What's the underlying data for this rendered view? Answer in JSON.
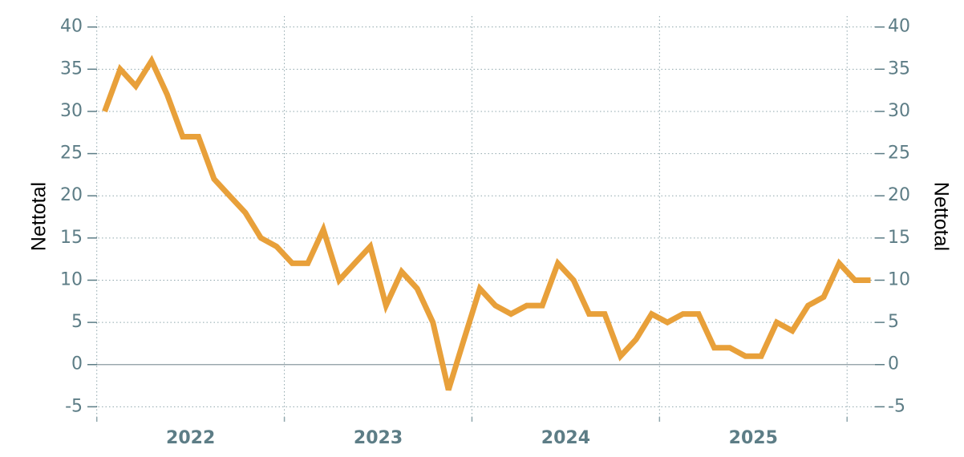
{
  "chart_data": {
    "type": "line",
    "y_label": "Nettotal",
    "y2_label": "Nettotal",
    "x": [
      2022.042,
      2022.125,
      2022.208,
      2022.292,
      2022.375,
      2022.458,
      2022.542,
      2022.625,
      2022.708,
      2022.792,
      2022.875,
      2022.958,
      2023.042,
      2023.125,
      2023.208,
      2023.292,
      2023.375,
      2023.458,
      2023.542,
      2023.625,
      2023.708,
      2023.792,
      2023.875,
      2023.958,
      2024.042,
      2024.125,
      2024.208,
      2024.292,
      2024.375,
      2024.458,
      2024.542,
      2024.625,
      2024.708,
      2024.792,
      2024.875,
      2024.958,
      2025.042,
      2025.125,
      2025.208,
      2025.292,
      2025.375,
      2025.458,
      2025.542,
      2025.625,
      2025.708,
      2025.792,
      2025.875,
      2025.958,
      2026.042,
      2026.125
    ],
    "series": [
      {
        "color": "#e8a03a",
        "values": [
          30,
          35,
          33,
          36,
          32,
          27,
          27,
          22,
          20,
          18,
          15,
          14,
          12,
          12,
          16,
          10,
          12,
          14,
          7,
          11,
          9,
          5,
          -3,
          3,
          9,
          7,
          6,
          7,
          7,
          12,
          10,
          6,
          6,
          1,
          3,
          6,
          5,
          6,
          6,
          2,
          2,
          1,
          1,
          5,
          4,
          7,
          8,
          12,
          10,
          10
        ]
      }
    ],
    "xlim": [
      2021.95,
      2026.2
    ],
    "xticks": [
      2022,
      2023,
      2024,
      2025
    ],
    "xgrid": [
      2022,
      2023,
      2024,
      2025,
      2026
    ],
    "ylim": [
      -6.2,
      41.3
    ],
    "yticks": [
      -5,
      0,
      5,
      10,
      15,
      20,
      25,
      30,
      35,
      40
    ],
    "y2lim": [
      -6.2,
      41.3
    ],
    "y2ticks": [
      -5,
      0,
      5,
      10,
      15,
      20,
      25,
      30,
      35,
      40
    ],
    "grid": true
  }
}
